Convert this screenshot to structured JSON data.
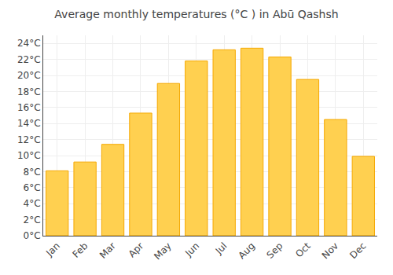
{
  "chart_data": {
    "type": "bar",
    "title": "Average monthly temperatures (°C ) in Abū Qashsh",
    "categories": [
      "Jan",
      "Feb",
      "Mar",
      "Apr",
      "May",
      "Jun",
      "Jul",
      "Aug",
      "Sep",
      "Oct",
      "Nov",
      "Dec"
    ],
    "values": [
      8.1,
      9.2,
      11.4,
      15.3,
      19.0,
      21.8,
      23.2,
      23.4,
      22.3,
      19.5,
      14.5,
      9.9
    ],
    "color": "#FFD050",
    "ylim": [
      0,
      25
    ],
    "yticks": [
      {
        "value": 0,
        "label": "0°C"
      },
      {
        "value": 2,
        "label": "2°C"
      },
      {
        "value": 4,
        "label": "4°C"
      },
      {
        "value": 6,
        "label": "6°C"
      },
      {
        "value": 8,
        "label": "8°C"
      },
      {
        "value": 10,
        "label": "10°C"
      },
      {
        "value": 12,
        "label": "12°C"
      },
      {
        "value": 14,
        "label": "14°C"
      },
      {
        "value": 16,
        "label": "16°C"
      },
      {
        "value": 18,
        "label": "18°C"
      },
      {
        "value": 20,
        "label": "20°C"
      },
      {
        "value": 22,
        "label": "22°C"
      },
      {
        "value": 24,
        "label": "24°C"
      }
    ],
    "grid": true
  }
}
